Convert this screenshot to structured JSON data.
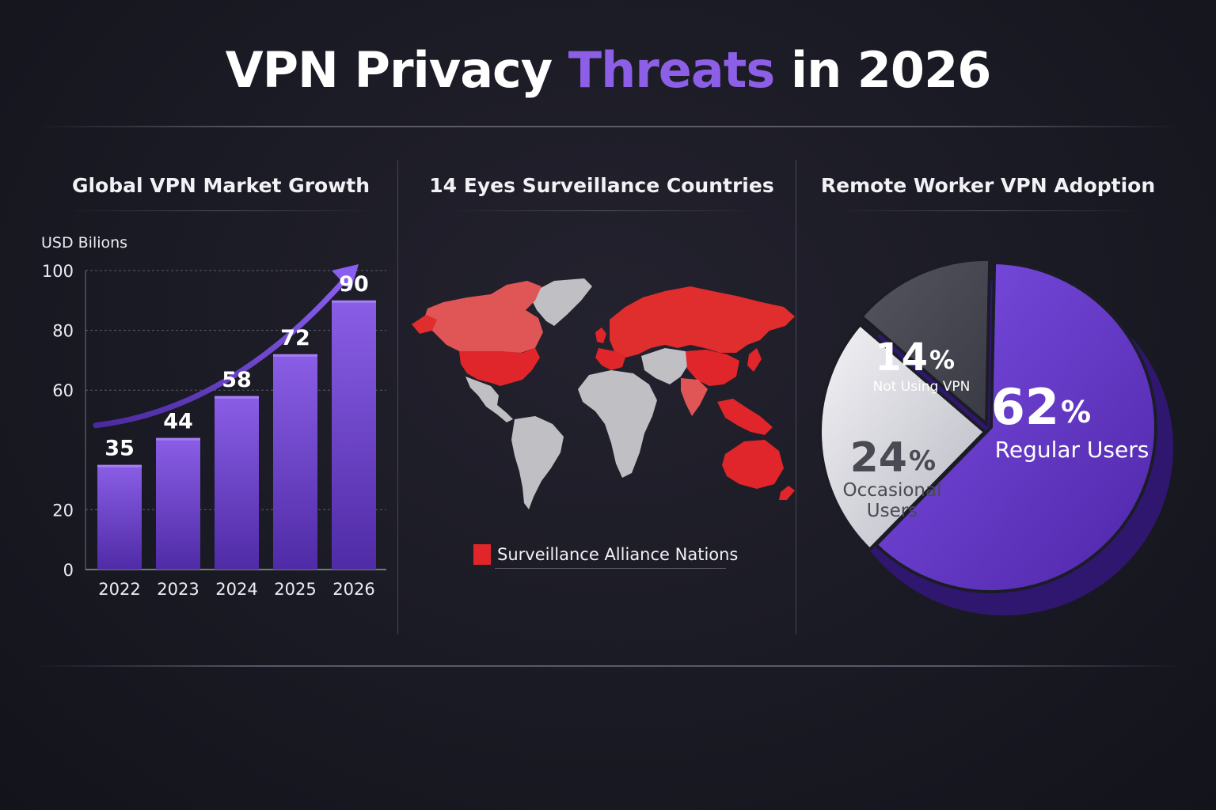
{
  "page": {
    "title_part1": "VPN Privacy ",
    "title_accent": "Threats",
    "title_part2": " in 2026",
    "accent_color": "#8d5fe6"
  },
  "market_panel": {
    "title": "Global VPN Market Growth",
    "unit_label": "USD Bilions"
  },
  "map_panel": {
    "title": "14 Eyes Surveillance Countries",
    "legend_label": "Surveillance Alliance Nations",
    "highlight_color": "#e0262a",
    "land_color": "#bfbfc4"
  },
  "pie_panel": {
    "title": "Remote Worker VPN Adoption"
  },
  "chart_data": [
    {
      "type": "bar",
      "title": "Global VPN Market Growth",
      "ylabel": "USD Bilions",
      "categories": [
        "2022",
        "2023",
        "2024",
        "2025",
        "2026"
      ],
      "values": [
        35,
        44,
        58,
        72,
        90
      ],
      "value_labels": [
        "35",
        "44",
        "58",
        "72",
        "90"
      ],
      "yticks": [
        "100",
        "80",
        "60",
        "20",
        "0"
      ],
      "ylim": [
        0,
        100
      ],
      "bar_color": "#7a4fd9",
      "trend_arrow": true
    },
    {
      "type": "pie",
      "title": "Remote Worker VPN Adoption",
      "slices": [
        {
          "label": "Regular Users",
          "value": 62,
          "value_text": "62",
          "pct": "%",
          "color": "#6a3fd1"
        },
        {
          "label_lines": [
            "Occasional",
            "Users"
          ],
          "value": 24,
          "value_text": "24",
          "pct": "%",
          "color": "#d9d9e0"
        },
        {
          "label": "Not Using VPN",
          "value": 14,
          "value_text": "14",
          "pct": "%",
          "color": "#4a4a54"
        }
      ]
    }
  ]
}
